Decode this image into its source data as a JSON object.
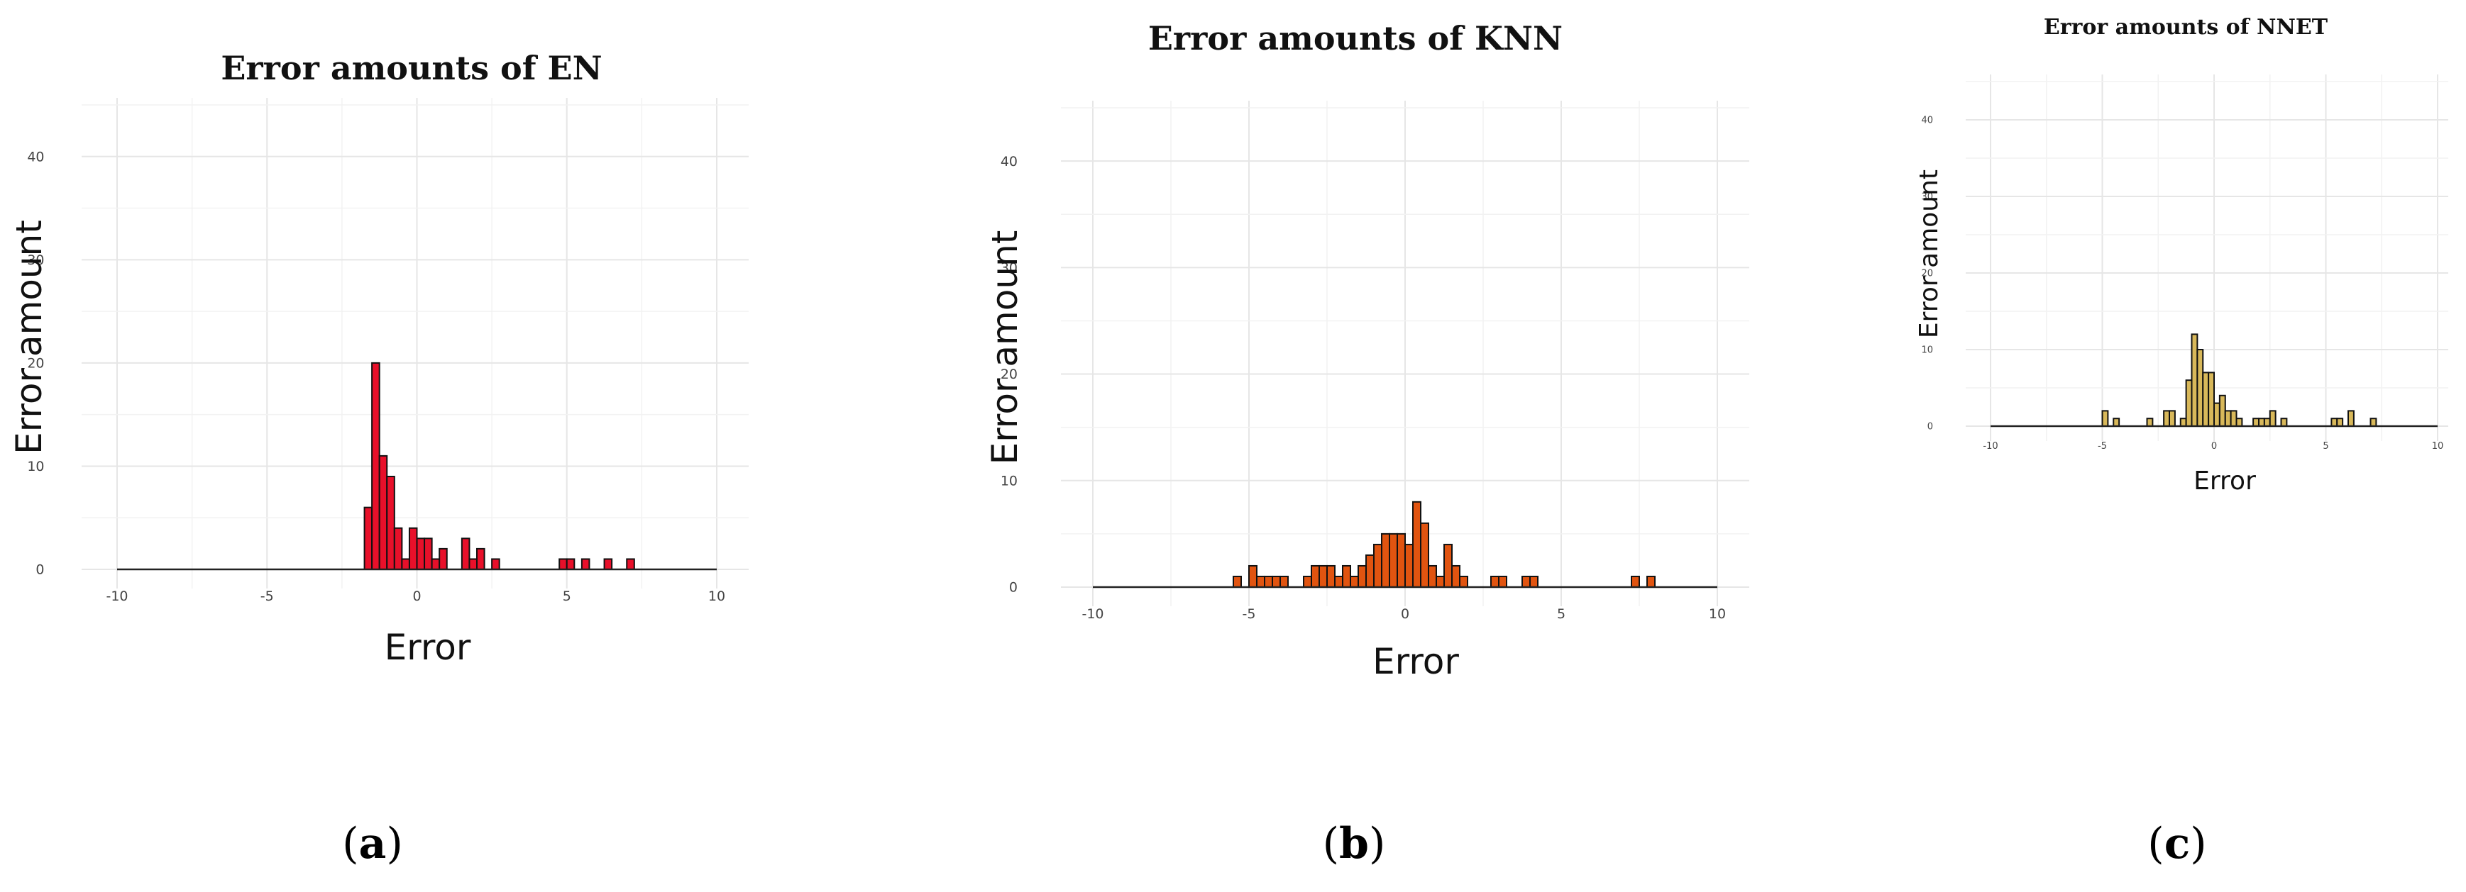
{
  "chart_data": [
    {
      "type": "bar",
      "title": "Error amounts of EN",
      "xlabel": "Error",
      "ylabel": "Error amount",
      "xlim": [
        -10,
        10
      ],
      "ylim": [
        0,
        45
      ],
      "xticks": [
        "-10",
        "-5",
        "0",
        "5",
        "10"
      ],
      "yticks": [
        "0",
        "10",
        "20",
        "30",
        "40"
      ],
      "bin_width": 0.25,
      "color": "#e8102a",
      "grid": true,
      "panel_label": "a",
      "bins": [
        {
          "x": -1.625,
          "y": 6
        },
        {
          "x": -1.375,
          "y": 20
        },
        {
          "x": -1.125,
          "y": 11
        },
        {
          "x": -0.875,
          "y": 9
        },
        {
          "x": -0.625,
          "y": 4
        },
        {
          "x": -0.375,
          "y": 1
        },
        {
          "x": -0.125,
          "y": 4
        },
        {
          "x": 0.125,
          "y": 3
        },
        {
          "x": 0.375,
          "y": 3
        },
        {
          "x": 0.625,
          "y": 1
        },
        {
          "x": 0.875,
          "y": 2
        },
        {
          "x": 1.625,
          "y": 3
        },
        {
          "x": 1.875,
          "y": 1
        },
        {
          "x": 2.125,
          "y": 2
        },
        {
          "x": 2.625,
          "y": 1
        },
        {
          "x": 4.875,
          "y": 1
        },
        {
          "x": 5.125,
          "y": 1
        },
        {
          "x": 5.625,
          "y": 1
        },
        {
          "x": 6.375,
          "y": 1
        },
        {
          "x": 7.125,
          "y": 1
        }
      ]
    },
    {
      "type": "bar",
      "title": "Error amounts of KNN",
      "xlabel": "Error",
      "ylabel": "Error amount",
      "xlim": [
        -10,
        10
      ],
      "ylim": [
        0,
        45
      ],
      "xticks": [
        "-10",
        "-5",
        "0",
        "5",
        "10"
      ],
      "yticks": [
        "0",
        "10",
        "20",
        "30",
        "40"
      ],
      "bin_width": 0.25,
      "color": "#e15410",
      "grid": true,
      "panel_label": "b",
      "bins": [
        {
          "x": -5.375,
          "y": 1
        },
        {
          "x": -4.875,
          "y": 2
        },
        {
          "x": -4.625,
          "y": 1
        },
        {
          "x": -4.375,
          "y": 1
        },
        {
          "x": -4.125,
          "y": 1
        },
        {
          "x": -3.875,
          "y": 1
        },
        {
          "x": -3.125,
          "y": 1
        },
        {
          "x": -2.875,
          "y": 2
        },
        {
          "x": -2.625,
          "y": 2
        },
        {
          "x": -2.375,
          "y": 2
        },
        {
          "x": -2.125,
          "y": 1
        },
        {
          "x": -1.875,
          "y": 2
        },
        {
          "x": -1.625,
          "y": 1
        },
        {
          "x": -1.375,
          "y": 2
        },
        {
          "x": -1.125,
          "y": 3
        },
        {
          "x": -0.875,
          "y": 4
        },
        {
          "x": -0.625,
          "y": 5
        },
        {
          "x": -0.375,
          "y": 5
        },
        {
          "x": -0.125,
          "y": 5
        },
        {
          "x": 0.125,
          "y": 4
        },
        {
          "x": 0.375,
          "y": 8
        },
        {
          "x": 0.625,
          "y": 6
        },
        {
          "x": 0.875,
          "y": 2
        },
        {
          "x": 1.125,
          "y": 1
        },
        {
          "x": 1.375,
          "y": 4
        },
        {
          "x": 1.625,
          "y": 2
        },
        {
          "x": 1.875,
          "y": 1
        },
        {
          "x": 2.875,
          "y": 1
        },
        {
          "x": 3.125,
          "y": 1
        },
        {
          "x": 3.875,
          "y": 1
        },
        {
          "x": 4.125,
          "y": 1
        },
        {
          "x": 7.375,
          "y": 1
        },
        {
          "x": 7.875,
          "y": 1
        }
      ]
    },
    {
      "type": "bar",
      "title": "Error amounts of NNET",
      "xlabel": "Error",
      "ylabel": "Error amount",
      "xlim": [
        -10,
        10
      ],
      "ylim": [
        0,
        45
      ],
      "xticks": [
        "-10",
        "-5",
        "0",
        "5",
        "10"
      ],
      "yticks": [
        "0",
        "10",
        "20",
        "30",
        "40"
      ],
      "bin_width": 0.25,
      "color": "#d8b85a",
      "grid": true,
      "panel_label": "c",
      "bins": [
        {
          "x": -4.875,
          "y": 2
        },
        {
          "x": -4.375,
          "y": 1
        },
        {
          "x": -2.875,
          "y": 1
        },
        {
          "x": -2.125,
          "y": 2
        },
        {
          "x": -1.875,
          "y": 2
        },
        {
          "x": -1.375,
          "y": 1
        },
        {
          "x": -1.125,
          "y": 6
        },
        {
          "x": -0.875,
          "y": 12
        },
        {
          "x": -0.625,
          "y": 10
        },
        {
          "x": -0.375,
          "y": 7
        },
        {
          "x": -0.125,
          "y": 7
        },
        {
          "x": 0.125,
          "y": 3
        },
        {
          "x": 0.375,
          "y": 4
        },
        {
          "x": 0.625,
          "y": 2
        },
        {
          "x": 0.875,
          "y": 2
        },
        {
          "x": 1.125,
          "y": 1
        },
        {
          "x": 1.875,
          "y": 1
        },
        {
          "x": 2.125,
          "y": 1
        },
        {
          "x": 2.375,
          "y": 1
        },
        {
          "x": 2.625,
          "y": 2
        },
        {
          "x": 3.125,
          "y": 1
        },
        {
          "x": 5.375,
          "y": 1
        },
        {
          "x": 5.625,
          "y": 1
        },
        {
          "x": 6.125,
          "y": 2
        },
        {
          "x": 7.125,
          "y": 1
        }
      ]
    }
  ]
}
